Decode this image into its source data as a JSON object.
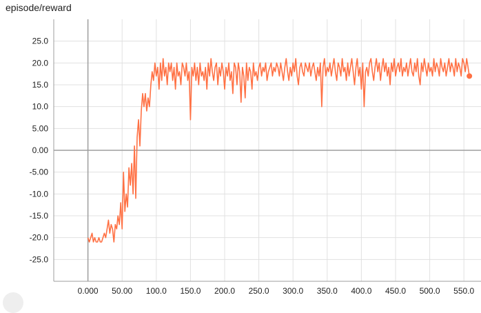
{
  "title": "episode/reward",
  "colors": {
    "series": "#ff7043",
    "grid": "#e0e0e0",
    "axis": "#9e9e9e",
    "text": "#212121"
  },
  "chart_data": {
    "type": "line",
    "title": "episode/reward",
    "xlabel": "",
    "ylabel": "",
    "xlim": [
      -50,
      575
    ],
    "ylim": [
      -30,
      30
    ],
    "grid": true,
    "x_ticks": [
      0,
      50,
      100,
      150,
      200,
      250,
      300,
      350,
      400,
      450,
      500,
      550
    ],
    "x_tick_labels": [
      "0.000",
      "50.00",
      "100.0",
      "150.0",
      "200.0",
      "250.0",
      "300.0",
      "350.0",
      "400.0",
      "450.0",
      "500.0",
      "550.0"
    ],
    "y_ticks": [
      25,
      20,
      15,
      10,
      5,
      0,
      -5,
      -10,
      -15,
      -20,
      -25
    ],
    "y_tick_labels": [
      "25.0",
      "20.0",
      "15.0",
      "10.0",
      "5.00",
      "0.00",
      "-5.00",
      "-10.0",
      "-15.0",
      "-20.0",
      "-25.0"
    ],
    "series": [
      {
        "color": "#ff7043",
        "points": [
          [
            0,
            -20
          ],
          [
            2,
            -21
          ],
          [
            4,
            -20
          ],
          [
            6,
            -19
          ],
          [
            8,
            -21
          ],
          [
            10,
            -20
          ],
          [
            12,
            -21
          ],
          [
            14,
            -21
          ],
          [
            16,
            -20
          ],
          [
            18,
            -21
          ],
          [
            20,
            -21
          ],
          [
            22,
            -20
          ],
          [
            24,
            -19
          ],
          [
            26,
            -20
          ],
          [
            28,
            -18
          ],
          [
            30,
            -16
          ],
          [
            32,
            -19
          ],
          [
            34,
            -17
          ],
          [
            36,
            -18
          ],
          [
            38,
            -21
          ],
          [
            40,
            -17
          ],
          [
            42,
            -18
          ],
          [
            44,
            -15
          ],
          [
            46,
            -17
          ],
          [
            48,
            -12
          ],
          [
            50,
            -18
          ],
          [
            52,
            -5
          ],
          [
            54,
            -14
          ],
          [
            56,
            -10
          ],
          [
            58,
            -13
          ],
          [
            60,
            -4
          ],
          [
            62,
            -8
          ],
          [
            64,
            -3
          ],
          [
            66,
            -10
          ],
          [
            68,
            1
          ],
          [
            70,
            -11
          ],
          [
            72,
            3
          ],
          [
            74,
            7
          ],
          [
            76,
            1
          ],
          [
            78,
            9
          ],
          [
            80,
            13
          ],
          [
            82,
            10
          ],
          [
            84,
            13
          ],
          [
            86,
            9
          ],
          [
            88,
            12
          ],
          [
            90,
            10
          ],
          [
            92,
            15
          ],
          [
            94,
            18
          ],
          [
            96,
            16
          ],
          [
            98,
            20
          ],
          [
            100,
            17
          ],
          [
            102,
            19
          ],
          [
            104,
            14
          ],
          [
            106,
            20
          ],
          [
            108,
            16
          ],
          [
            110,
            21
          ],
          [
            112,
            17
          ],
          [
            114,
            19
          ],
          [
            116,
            15
          ],
          [
            118,
            20
          ],
          [
            120,
            18
          ],
          [
            122,
            20
          ],
          [
            124,
            16
          ],
          [
            126,
            19
          ],
          [
            128,
            14
          ],
          [
            130,
            20
          ],
          [
            132,
            17
          ],
          [
            134,
            18
          ],
          [
            136,
            15
          ],
          [
            138,
            20
          ],
          [
            140,
            19
          ],
          [
            142,
            17
          ],
          [
            144,
            20
          ],
          [
            146,
            16
          ],
          [
            148,
            18
          ],
          [
            150,
            7
          ],
          [
            152,
            19
          ],
          [
            154,
            17
          ],
          [
            156,
            20
          ],
          [
            158,
            16
          ],
          [
            160,
            19
          ],
          [
            162,
            15
          ],
          [
            164,
            20
          ],
          [
            166,
            17
          ],
          [
            168,
            18
          ],
          [
            170,
            16
          ],
          [
            172,
            19
          ],
          [
            174,
            14
          ],
          [
            176,
            20
          ],
          [
            178,
            17
          ],
          [
            180,
            21
          ],
          [
            182,
            18
          ],
          [
            184,
            16
          ],
          [
            186,
            19
          ],
          [
            188,
            20
          ],
          [
            190,
            15
          ],
          [
            192,
            19
          ],
          [
            194,
            17
          ],
          [
            196,
            20
          ],
          [
            198,
            18
          ],
          [
            200,
            14
          ],
          [
            202,
            19
          ],
          [
            204,
            17
          ],
          [
            206,
            20
          ],
          [
            208,
            16
          ],
          [
            210,
            18
          ],
          [
            212,
            13
          ],
          [
            214,
            20
          ],
          [
            216,
            19
          ],
          [
            218,
            15
          ],
          [
            220,
            20
          ],
          [
            222,
            18
          ],
          [
            224,
            11
          ],
          [
            226,
            19
          ],
          [
            228,
            17
          ],
          [
            230,
            12
          ],
          [
            232,
            20
          ],
          [
            234,
            16
          ],
          [
            236,
            19
          ],
          [
            238,
            18
          ],
          [
            240,
            14
          ],
          [
            242,
            20
          ],
          [
            244,
            17
          ],
          [
            246,
            18
          ],
          [
            248,
            16
          ],
          [
            250,
            19
          ],
          [
            252,
            20
          ],
          [
            254,
            17
          ],
          [
            256,
            19
          ],
          [
            258,
            18
          ],
          [
            260,
            20
          ],
          [
            262,
            16
          ],
          [
            264,
            18
          ],
          [
            266,
            19
          ],
          [
            268,
            20
          ],
          [
            270,
            17
          ],
          [
            272,
            19
          ],
          [
            274,
            18
          ],
          [
            276,
            20
          ],
          [
            278,
            19
          ],
          [
            280,
            17
          ],
          [
            282,
            20
          ],
          [
            284,
            18
          ],
          [
            286,
            16
          ],
          [
            288,
            19
          ],
          [
            290,
            21
          ],
          [
            292,
            18
          ],
          [
            294,
            16
          ],
          [
            296,
            19
          ],
          [
            298,
            17
          ],
          [
            300,
            20
          ],
          [
            302,
            18
          ],
          [
            304,
            21
          ],
          [
            306,
            17
          ],
          [
            308,
            15
          ],
          [
            310,
            19
          ],
          [
            312,
            20
          ],
          [
            314,
            18
          ],
          [
            316,
            17
          ],
          [
            318,
            20
          ],
          [
            320,
            19
          ],
          [
            322,
            18
          ],
          [
            324,
            20
          ],
          [
            326,
            17
          ],
          [
            328,
            19
          ],
          [
            330,
            20
          ],
          [
            332,
            18
          ],
          [
            334,
            16
          ],
          [
            336,
            19
          ],
          [
            338,
            17
          ],
          [
            340,
            20
          ],
          [
            342,
            10
          ],
          [
            344,
            19
          ],
          [
            346,
            21
          ],
          [
            348,
            17
          ],
          [
            350,
            19
          ],
          [
            352,
            18
          ],
          [
            354,
            20
          ],
          [
            356,
            17
          ],
          [
            358,
            19
          ],
          [
            360,
            21
          ],
          [
            362,
            18
          ],
          [
            364,
            16
          ],
          [
            366,
            20
          ],
          [
            368,
            19
          ],
          [
            370,
            17
          ],
          [
            372,
            21
          ],
          [
            374,
            18
          ],
          [
            376,
            19
          ],
          [
            378,
            16
          ],
          [
            380,
            20
          ],
          [
            382,
            17
          ],
          [
            384,
            19
          ],
          [
            386,
            21
          ],
          [
            388,
            18
          ],
          [
            390,
            15
          ],
          [
            392,
            19
          ],
          [
            394,
            21
          ],
          [
            396,
            17
          ],
          [
            398,
            19
          ],
          [
            400,
            14
          ],
          [
            402,
            20
          ],
          [
            404,
            10
          ],
          [
            406,
            18
          ],
          [
            408,
            19
          ],
          [
            410,
            17
          ],
          [
            412,
            20
          ],
          [
            414,
            21
          ],
          [
            416,
            18
          ],
          [
            418,
            16
          ],
          [
            420,
            19
          ],
          [
            422,
            21
          ],
          [
            424,
            18
          ],
          [
            426,
            20
          ],
          [
            428,
            16
          ],
          [
            430,
            19
          ],
          [
            432,
            21
          ],
          [
            434,
            18
          ],
          [
            436,
            20
          ],
          [
            438,
            17
          ],
          [
            440,
            19
          ],
          [
            442,
            15
          ],
          [
            444,
            20
          ],
          [
            446,
            18
          ],
          [
            448,
            21
          ],
          [
            450,
            17
          ],
          [
            452,
            19
          ],
          [
            454,
            20
          ],
          [
            456,
            18
          ],
          [
            458,
            21
          ],
          [
            460,
            17
          ],
          [
            462,
            19
          ],
          [
            464,
            18
          ],
          [
            466,
            20
          ],
          [
            468,
            17
          ],
          [
            470,
            19
          ],
          [
            472,
            21
          ],
          [
            474,
            18
          ],
          [
            476,
            17
          ],
          [
            478,
            20
          ],
          [
            480,
            18
          ],
          [
            482,
            21
          ],
          [
            484,
            17
          ],
          [
            486,
            15
          ],
          [
            488,
            20
          ],
          [
            490,
            18
          ],
          [
            492,
            21
          ],
          [
            494,
            19
          ],
          [
            496,
            17
          ],
          [
            498,
            20
          ],
          [
            500,
            18
          ],
          [
            502,
            19
          ],
          [
            504,
            17
          ],
          [
            506,
            21
          ],
          [
            508,
            18
          ],
          [
            510,
            20
          ],
          [
            512,
            19
          ],
          [
            514,
            17
          ],
          [
            516,
            21
          ],
          [
            518,
            19
          ],
          [
            520,
            18
          ],
          [
            522,
            20
          ],
          [
            524,
            17
          ],
          [
            526,
            19
          ],
          [
            528,
            21
          ],
          [
            530,
            18
          ],
          [
            532,
            20
          ],
          [
            534,
            19
          ],
          [
            536,
            17
          ],
          [
            538,
            21
          ],
          [
            540,
            18
          ],
          [
            542,
            20
          ],
          [
            544,
            19
          ],
          [
            546,
            17
          ],
          [
            548,
            21
          ],
          [
            550,
            20
          ],
          [
            552,
            18
          ],
          [
            554,
            21
          ],
          [
            556,
            19
          ],
          [
            558,
            17
          ]
        ]
      }
    ]
  }
}
